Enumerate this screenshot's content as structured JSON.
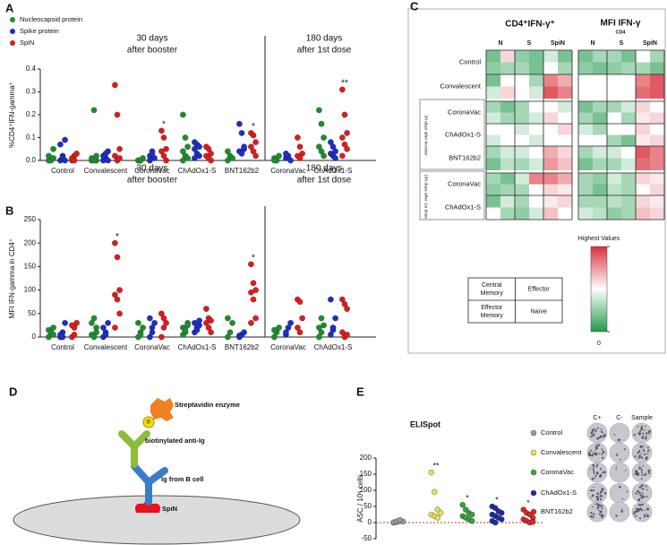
{
  "chart_data": [
    {
      "type": "strip",
      "panel": "A",
      "ylabel": "%CD4⁺IFN-gamma⁺",
      "headers": [
        [
          "30 days",
          "after booster"
        ],
        [
          "180 days",
          "after 1st dose"
        ]
      ],
      "categories": [
        "Control",
        "Convalescent",
        "CoronaVac",
        "ChAdOx1-S",
        "BNT162b2",
        "CoronaVac",
        "ChAdOx1-S"
      ],
      "ylim": [
        0,
        0.4
      ],
      "yticks": [
        {
          "value": 0,
          "label": "0.0"
        },
        0.1,
        0.2,
        0.3,
        0.4
      ],
      "annotations": [
        null,
        null,
        "*",
        null,
        "*",
        null,
        "**"
      ],
      "series": [
        {
          "name": "Nucleocapsid protein",
          "color": "#1e8c2e",
          "values": [
            [
              0,
              0.01,
              0.05,
              0.02,
              0,
              0.01
            ],
            [
              0,
              0.22,
              0,
              0.01,
              0,
              0.02
            ],
            [
              0,
              0,
              0.01,
              0,
              0
            ],
            [
              0.2,
              0.1,
              0.06,
              0.04,
              0.02,
              0.01,
              0
            ],
            [
              0.04,
              0.02,
              0.01,
              0
            ],
            [
              0.01,
              0,
              0.02,
              0
            ],
            [
              0.22,
              0.16,
              0.1,
              0.06,
              0.04,
              0.02
            ]
          ]
        },
        {
          "name": "Spike  protein",
          "color": "#1f2fbf",
          "values": [
            [
              0,
              0.02,
              0.09,
              0.07,
              0.01,
              0
            ],
            [
              0,
              0.01,
              0.04,
              0.02,
              0.03,
              0
            ],
            [
              0.02,
              0.04,
              0.01,
              0,
              0.03
            ],
            [
              0.08,
              0.07,
              0.06,
              0.05,
              0.03,
              0.02,
              0.01
            ],
            [
              0.16,
              0.12,
              0.05,
              0.04,
              0.03,
              0.06
            ],
            [
              0.01,
              0.02,
              0,
              0.03
            ],
            [
              0.08,
              0.06,
              0.04,
              0.03,
              0.02,
              0.01
            ]
          ]
        },
        {
          "name": "SpiN",
          "color": "#d42020",
          "values": [
            [
              0,
              0.02,
              0.03,
              0.01,
              0
            ],
            [
              0.33,
              0.2,
              0.05,
              0.02,
              0,
              0.01
            ],
            [
              0.13,
              0.1,
              0.05,
              0.04,
              0.02,
              0
            ],
            [
              0.06,
              0.05,
              0.03,
              0.02,
              0.01,
              0
            ],
            [
              0.12,
              0.11,
              0.08,
              0.06,
              0.04,
              0.02
            ],
            [
              0.1,
              0.06,
              0.03,
              0.02,
              0.01
            ],
            [
              0.31,
              0.2,
              0.12,
              0.1,
              0.07,
              0.05,
              0.02
            ]
          ]
        }
      ]
    },
    {
      "type": "strip",
      "panel": "B",
      "ylabel": "MFI IFN-gamma in CD4⁺",
      "headers": [
        [
          "30 days",
          "after booster"
        ],
        [
          "180 days",
          "after 1st dose"
        ]
      ],
      "categories": [
        "Control",
        "Convalescent",
        "CoronaVac",
        "ChAdOx1-S",
        "BNT162b2",
        "CoronaVac",
        "ChAdOx1-S"
      ],
      "ylim": [
        0,
        250
      ],
      "yticks": [
        0,
        50,
        100,
        150,
        200,
        250
      ],
      "annotations": [
        null,
        "*",
        null,
        null,
        "*",
        null,
        null
      ],
      "series": [
        {
          "color": "#1e8c2e",
          "values": [
            [
              0,
              5,
              20,
              15,
              10,
              5
            ],
            [
              5,
              40,
              10,
              30,
              0,
              20
            ],
            [
              0,
              10,
              20,
              30,
              5
            ],
            [
              5,
              10,
              30,
              20,
              15,
              25
            ],
            [
              0,
              10,
              30,
              40
            ],
            [
              0,
              10,
              20,
              15
            ],
            [
              0,
              10,
              25,
              20,
              40
            ]
          ]
        },
        {
          "color": "#1f2fbf",
          "values": [
            [
              0,
              10,
              30,
              5,
              0
            ],
            [
              0,
              10,
              30,
              20,
              5
            ],
            [
              0,
              10,
              30,
              40,
              20
            ],
            [
              10,
              20,
              35,
              30,
              15,
              25
            ],
            [
              0,
              5,
              10,
              3
            ],
            [
              5,
              20,
              30,
              10
            ],
            [
              5,
              15,
              40,
              80,
              20
            ]
          ]
        },
        {
          "color": "#d42020",
          "values": [
            [
              0,
              20,
              30,
              25,
              5
            ],
            [
              200,
              170,
              100,
              90,
              80,
              50,
              20
            ],
            [
              0,
              20,
              30,
              50,
              40
            ],
            [
              60,
              40,
              35,
              30,
              20,
              10
            ],
            [
              155,
              115,
              100,
              95,
              80,
              40,
              30
            ],
            [
              80,
              75,
              40,
              20,
              10
            ],
            [
              80,
              70,
              60,
              10,
              0,
              5
            ]
          ]
        }
      ]
    },
    {
      "type": "heatmap",
      "panel": "C",
      "column_groups": [
        {
          "title": "CD4⁺IFN-γ⁺"
        },
        {
          "title": "MFI IFN-γ",
          "subscript": "CD4"
        }
      ],
      "columns": [
        "N",
        "S",
        "SpiN"
      ],
      "rows": [
        "Control",
        "Convalescent",
        "CoronaVac",
        "ChAdOx1-S",
        "BNT162b2",
        "CoronaVac",
        "ChAdOx1-S"
      ],
      "row_groups": [
        "30 days after booster",
        "180 days after 1st dose"
      ],
      "subsets": [
        [
          "Central",
          "Memory"
        ],
        [
          "Effector"
        ],
        [
          "Effector",
          "Memory"
        ],
        [
          "Naïve"
        ]
      ],
      "clim": [
        0,
        1
      ],
      "colorbar_ticks": [
        {
          "value": 1,
          "label": "Highest Values"
        },
        0
      ],
      "values": [
        [
          [
            0.2,
            0.6,
            0.25,
            0.3
          ],
          [
            0.25,
            0.2,
            0.3,
            0.2
          ],
          [
            0.4,
            0.2,
            0.5,
            0.3
          ],
          [
            0.2,
            0.3,
            0.25,
            0.2
          ],
          [
            0.3,
            0.2,
            0.25,
            0.3
          ],
          [
            0.5,
            0.3,
            0.3,
            0.2
          ]
        ],
        [
          [
            0.2,
            0.5,
            0.4,
            0.6
          ],
          [
            0.5,
            0.3,
            0.5,
            0.4
          ],
          [
            0.8,
            0.7,
            0.9,
            0.8
          ],
          [
            0.5,
            0.5,
            0.5,
            0.5
          ],
          [
            0.5,
            0.5,
            0.5,
            0.5
          ],
          [
            0.8,
            0.9,
            0.85,
            0.9
          ]
        ],
        [
          [
            0.3,
            0.2,
            0.4,
            0.3
          ],
          [
            0.3,
            0.5,
            0.3,
            0.4
          ],
          [
            0.5,
            0.4,
            0.6,
            0.5
          ],
          [
            0.2,
            0.3,
            0.3,
            0.2
          ],
          [
            0.3,
            0.4,
            0.5,
            0.3
          ],
          [
            0.6,
            0.5,
            0.55,
            0.6
          ]
        ],
        [
          [
            0.5,
            0.5,
            0.4,
            0.5
          ],
          [
            0.4,
            0.5,
            0.5,
            0.4
          ],
          [
            0.5,
            0.6,
            0.5,
            0.5
          ],
          [
            0.4,
            0.3,
            0.5,
            0.5
          ],
          [
            0.5,
            0.5,
            0.3,
            0.2
          ],
          [
            0.6,
            0.5,
            0.55,
            0.6
          ]
        ],
        [
          [
            0.3,
            0.4,
            0.2,
            0.35
          ],
          [
            0.4,
            0.5,
            0.3,
            0.4
          ],
          [
            0.7,
            0.6,
            0.75,
            0.65
          ],
          [
            0.3,
            0.4,
            0.2,
            0.3
          ],
          [
            0.4,
            0.5,
            0.3,
            0.4
          ],
          [
            0.9,
            0.8,
            0.85,
            0.8
          ]
        ],
        [
          [
            0.3,
            0.2,
            0.25,
            0.3
          ],
          [
            0.4,
            0.8,
            0.3,
            0.5
          ],
          [
            0.8,
            0.7,
            0.6,
            0.55
          ],
          [
            0.3,
            0.25,
            0.3,
            0.2
          ],
          [
            0.4,
            0.3,
            0.35,
            0.3
          ],
          [
            0.6,
            0.55,
            0.5,
            0.6
          ]
        ],
        [
          [
            0.2,
            0.4,
            0.5,
            0.3
          ],
          [
            0.3,
            0.5,
            0.25,
            0.4
          ],
          [
            0.55,
            0.6,
            0.65,
            0.5
          ],
          [
            0.3,
            0.3,
            0.4,
            0.35
          ],
          [
            0.35,
            0.3,
            0.25,
            0.3
          ],
          [
            0.6,
            0.55,
            0.65,
            0.6
          ]
        ]
      ]
    },
    {
      "type": "strip",
      "panel": "E",
      "title": "ELISpot",
      "ylabel": "ASC / 10⁶ cells",
      "ylim": [
        -50,
        200
      ],
      "yticks": [
        -50,
        0,
        50,
        100,
        150,
        200
      ],
      "annotations": [
        null,
        "**",
        "*",
        "*",
        "*"
      ],
      "well_columns": [
        "C+",
        "C-",
        "Sample"
      ],
      "series": [
        {
          "name": "Control",
          "color": "#9a9a9a",
          "values": [
            0,
            2,
            5,
            3,
            1,
            4,
            8
          ]
        },
        {
          "name": "Convalescent",
          "color": "#e6e05a",
          "values": [
            155,
            95,
            40,
            30,
            25,
            20,
            15
          ]
        },
        {
          "name": "CoronaVac",
          "color": "#3aa13a",
          "values": [
            55,
            40,
            30,
            25,
            20,
            15,
            10,
            5
          ]
        },
        {
          "name": "ChAdOx1-S",
          "color": "#1f2f9f",
          "values": [
            50,
            45,
            35,
            30,
            25,
            20,
            15,
            10,
            5,
            0
          ]
        },
        {
          "name": "BNT162b2",
          "color": "#d42a2a",
          "values": [
            40,
            30,
            25,
            15,
            10,
            5,
            0,
            2
          ]
        }
      ]
    }
  ],
  "diagram": {
    "panel": "D",
    "enzyme": "Streptavidin enzyme",
    "biotin": "B",
    "antibody": "biotinylated anti-Ig",
    "ig": "Ig from B cell",
    "antigen": "SpiN"
  }
}
